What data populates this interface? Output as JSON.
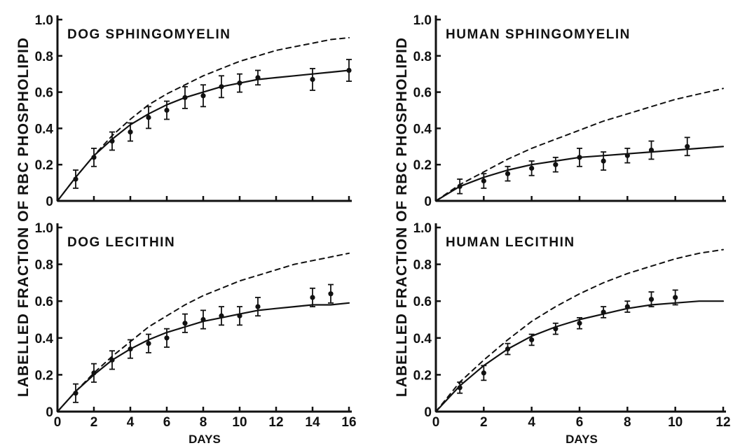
{
  "figure": {
    "ylabel_left": "LABELLED FRACTION OF RBC PHOSPHOLIPID",
    "ylabel_right": "LABELLED FRACTION OF RBC PHOSPHOLIPID",
    "xlabel_left": "DAYS",
    "xlabel_right": "DAYS"
  },
  "chart_data": [
    {
      "type": "line",
      "title": "DOG SPHINGOMYELIN",
      "xlim": [
        0,
        16
      ],
      "ylim": [
        0,
        1.0
      ],
      "x_ticks": [
        0,
        2,
        4,
        6,
        8,
        10,
        12,
        14,
        16
      ],
      "x_tick_labels": [
        "0",
        "2",
        "4",
        "6",
        "8",
        "10",
        "12",
        "14",
        "16"
      ],
      "y_ticks": [
        0,
        0.2,
        0.4,
        0.6,
        0.8,
        1.0
      ],
      "y_tick_labels": [
        "0",
        "0.2",
        "0.4",
        "0.6",
        "0.8",
        "1.0"
      ],
      "show_x_tick_labels": false,
      "series": [
        {
          "style": "solid",
          "x": [
            0,
            1,
            2,
            3,
            4,
            5,
            6,
            7,
            8,
            9,
            10,
            11,
            12,
            13,
            14,
            15,
            16
          ],
          "y": [
            0,
            0.13,
            0.25,
            0.34,
            0.42,
            0.48,
            0.53,
            0.57,
            0.6,
            0.63,
            0.65,
            0.67,
            0.68,
            0.69,
            0.7,
            0.71,
            0.72
          ]
        },
        {
          "style": "dashed",
          "x": [
            0,
            1,
            2,
            3,
            4,
            5,
            6,
            7,
            8,
            9,
            10,
            11,
            12,
            13,
            14,
            15,
            16
          ],
          "y": [
            0,
            0.13,
            0.25,
            0.36,
            0.45,
            0.53,
            0.59,
            0.64,
            0.69,
            0.73,
            0.77,
            0.8,
            0.83,
            0.85,
            0.87,
            0.89,
            0.9
          ]
        },
        {
          "style": "points",
          "x": [
            1,
            2,
            3,
            4,
            5,
            6,
            7,
            8,
            9,
            10,
            11,
            14,
            16
          ],
          "y": [
            0.12,
            0.24,
            0.33,
            0.38,
            0.46,
            0.5,
            0.57,
            0.58,
            0.63,
            0.65,
            0.68,
            0.67,
            0.72
          ],
          "err": [
            0.05,
            0.05,
            0.05,
            0.05,
            0.06,
            0.05,
            0.06,
            0.06,
            0.06,
            0.05,
            0.04,
            0.06,
            0.06
          ]
        }
      ]
    },
    {
      "type": "line",
      "title": "HUMAN SPHINGOMYELIN",
      "xlim": [
        0,
        12
      ],
      "ylim": [
        0,
        1.0
      ],
      "x_ticks": [
        0,
        2,
        4,
        6,
        8,
        10,
        12
      ],
      "x_tick_labels": [
        "0",
        "2",
        "4",
        "6",
        "8",
        "10",
        "12"
      ],
      "y_ticks": [
        0,
        0.2,
        0.4,
        0.6,
        0.8,
        1.0
      ],
      "y_tick_labels": [
        "0",
        "0.2",
        "0.4",
        "0.6",
        "0.8",
        "1.0"
      ],
      "show_x_tick_labels": false,
      "series": [
        {
          "style": "solid",
          "x": [
            0,
            1,
            2,
            3,
            4,
            5,
            6,
            7,
            8,
            9,
            10,
            11,
            12
          ],
          "y": [
            0,
            0.08,
            0.13,
            0.17,
            0.2,
            0.22,
            0.24,
            0.25,
            0.26,
            0.27,
            0.28,
            0.29,
            0.3
          ]
        },
        {
          "style": "dashed",
          "x": [
            0,
            1,
            2,
            3,
            4,
            5,
            6,
            7,
            8,
            9,
            10,
            11,
            12
          ],
          "y": [
            0,
            0.09,
            0.16,
            0.23,
            0.29,
            0.34,
            0.39,
            0.44,
            0.48,
            0.52,
            0.56,
            0.59,
            0.62
          ]
        },
        {
          "style": "points",
          "x": [
            1,
            2,
            3,
            4,
            5,
            6,
            7,
            8,
            9,
            10.5
          ],
          "y": [
            0.08,
            0.11,
            0.15,
            0.18,
            0.2,
            0.24,
            0.22,
            0.25,
            0.28,
            0.3
          ],
          "err": [
            0.04,
            0.04,
            0.04,
            0.04,
            0.04,
            0.05,
            0.05,
            0.04,
            0.05,
            0.05
          ]
        }
      ]
    },
    {
      "type": "line",
      "title": "DOG LECITHIN",
      "xlim": [
        0,
        16
      ],
      "ylim": [
        0,
        1.0
      ],
      "x_ticks": [
        0,
        2,
        4,
        6,
        8,
        10,
        12,
        14,
        16
      ],
      "x_tick_labels": [
        "0",
        "2",
        "4",
        "6",
        "8",
        "10",
        "12",
        "14",
        "16"
      ],
      "y_ticks": [
        0,
        0.2,
        0.4,
        0.6,
        0.8,
        1.0
      ],
      "y_tick_labels": [
        "0",
        "0.2",
        "0.4",
        "0.6",
        "0.8",
        "1.0"
      ],
      "show_x_tick_labels": true,
      "series": [
        {
          "style": "solid",
          "x": [
            0,
            1,
            2,
            3,
            4,
            5,
            6,
            7,
            8,
            9,
            10,
            11,
            12,
            13,
            14,
            15,
            16
          ],
          "y": [
            0,
            0.11,
            0.2,
            0.28,
            0.34,
            0.39,
            0.43,
            0.46,
            0.49,
            0.51,
            0.53,
            0.55,
            0.56,
            0.57,
            0.58,
            0.58,
            0.59
          ]
        },
        {
          "style": "dashed",
          "x": [
            0,
            1,
            2,
            3,
            4,
            5,
            6,
            7,
            8,
            9,
            10,
            11,
            12,
            13,
            14,
            15,
            16
          ],
          "y": [
            0,
            0.11,
            0.21,
            0.3,
            0.38,
            0.46,
            0.52,
            0.58,
            0.63,
            0.67,
            0.71,
            0.74,
            0.77,
            0.8,
            0.82,
            0.84,
            0.86
          ]
        },
        {
          "style": "points",
          "x": [
            1,
            2,
            3,
            4,
            5,
            6,
            7,
            8,
            9,
            10,
            11,
            14,
            15
          ],
          "y": [
            0.1,
            0.21,
            0.28,
            0.34,
            0.37,
            0.4,
            0.48,
            0.5,
            0.52,
            0.52,
            0.57,
            0.62,
            0.64
          ],
          "err": [
            0.05,
            0.05,
            0.05,
            0.05,
            0.05,
            0.05,
            0.05,
            0.05,
            0.05,
            0.05,
            0.05,
            0.05,
            0.05
          ]
        }
      ]
    },
    {
      "type": "line",
      "title": "HUMAN LECITHIN",
      "xlim": [
        0,
        12
      ],
      "ylim": [
        0,
        1.0
      ],
      "x_ticks": [
        0,
        2,
        4,
        6,
        8,
        10,
        12
      ],
      "x_tick_labels": [
        "0",
        "2",
        "4",
        "6",
        "8",
        "10",
        "12"
      ],
      "y_ticks": [
        0,
        0.2,
        0.4,
        0.6,
        0.8,
        1.0
      ],
      "y_tick_labels": [
        "0",
        "0.2",
        "0.4",
        "0.6",
        "0.8",
        "1.0"
      ],
      "show_x_tick_labels": true,
      "series": [
        {
          "style": "solid",
          "x": [
            0,
            1,
            2,
            3,
            4,
            5,
            6,
            7,
            8,
            9,
            10,
            11,
            12
          ],
          "y": [
            0,
            0.14,
            0.25,
            0.34,
            0.41,
            0.46,
            0.5,
            0.53,
            0.56,
            0.58,
            0.59,
            0.6,
            0.6
          ]
        },
        {
          "style": "dashed",
          "x": [
            0,
            1,
            2,
            3,
            4,
            5,
            6,
            7,
            8,
            9,
            10,
            11,
            12
          ],
          "y": [
            0,
            0.16,
            0.28,
            0.39,
            0.49,
            0.57,
            0.64,
            0.7,
            0.75,
            0.79,
            0.83,
            0.86,
            0.88
          ]
        },
        {
          "style": "points",
          "x": [
            1,
            2,
            3,
            4,
            5,
            6,
            7,
            8,
            9,
            10
          ],
          "y": [
            0.13,
            0.21,
            0.34,
            0.39,
            0.45,
            0.48,
            0.54,
            0.57,
            0.61,
            0.62
          ],
          "err": [
            0.03,
            0.04,
            0.03,
            0.03,
            0.03,
            0.03,
            0.03,
            0.03,
            0.04,
            0.04
          ]
        }
      ]
    }
  ]
}
